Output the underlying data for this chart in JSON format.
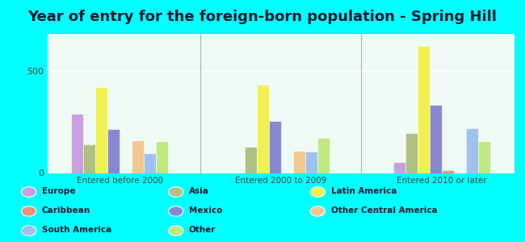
{
  "title": "Year of entry for the foreign-born population - Spring Hill",
  "categories": [
    "Entered before 2000",
    "Entered 2000 to 2009",
    "Entered 2010 or later"
  ],
  "series": [
    {
      "label": "Europe",
      "color": "#c8a0e0",
      "values": [
        290,
        0,
        55
      ]
    },
    {
      "label": "Asia",
      "color": "#b0c080",
      "values": [
        140,
        130,
        195
      ]
    },
    {
      "label": "Latin America",
      "color": "#f0f050",
      "values": [
        420,
        430,
        620
      ]
    },
    {
      "label": "Mexico",
      "color": "#8888d0",
      "values": [
        215,
        255,
        335
      ]
    },
    {
      "label": "Caribbean",
      "color": "#f09080",
      "values": [
        0,
        0,
        15
      ]
    },
    {
      "label": "Other Central America",
      "color": "#f0c890",
      "values": [
        160,
        110,
        0
      ]
    },
    {
      "label": "South America",
      "color": "#a0c0f0",
      "values": [
        95,
        105,
        220
      ]
    },
    {
      "label": "Other",
      "color": "#c0e880",
      "values": [
        155,
        170,
        155
      ]
    }
  ],
  "ylim": [
    0,
    680
  ],
  "yticks": [
    0,
    500
  ],
  "outer_bg": "#00ffff",
  "plot_bg": "#dff5e8",
  "title_fontsize": 13,
  "bar_width": 0.075,
  "legend_layout": [
    [
      [
        "Europe",
        "#c8a0e0"
      ],
      [
        "Caribbean",
        "#f09080"
      ],
      [
        "South America",
        "#a0c0f0"
      ]
    ],
    [
      [
        "Asia",
        "#b0c080"
      ],
      [
        "Mexico",
        "#8888d0"
      ],
      [
        "Other",
        "#c0e880"
      ]
    ],
    [
      [
        "Latin America",
        "#f0f050"
      ],
      [
        "Other Central America",
        "#f0c890"
      ]
    ]
  ]
}
